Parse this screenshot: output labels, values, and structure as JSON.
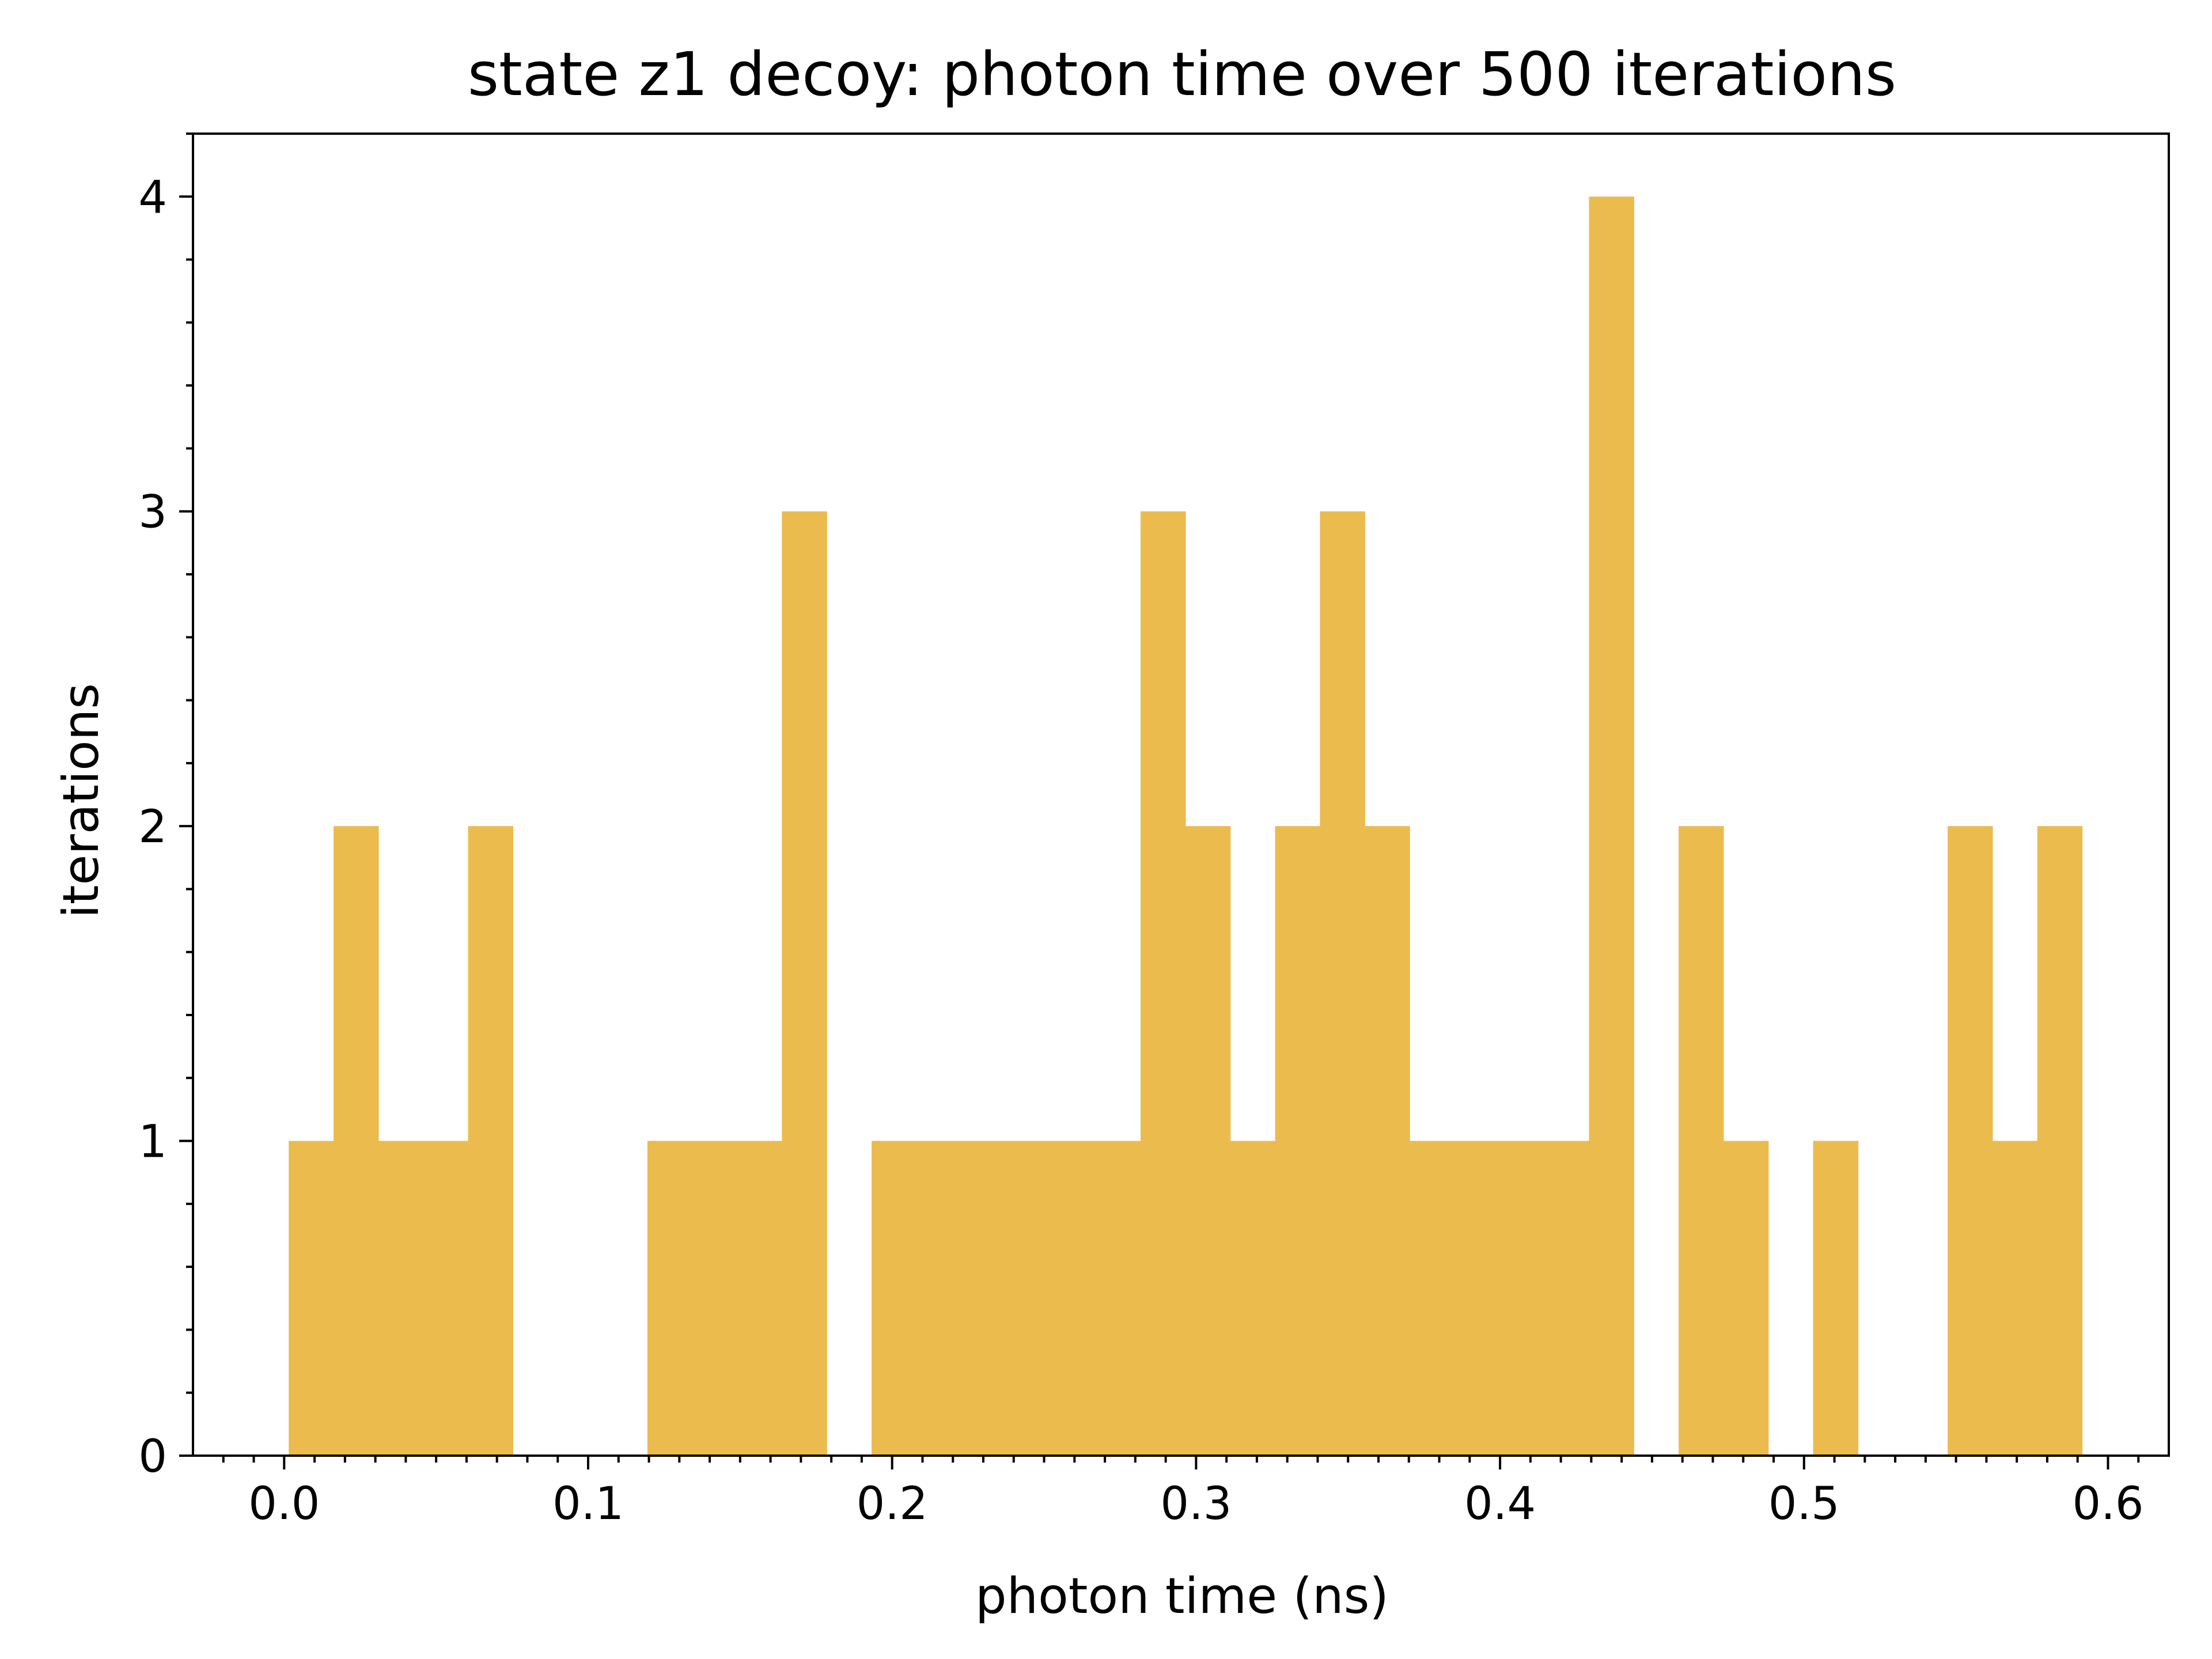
{
  "chart_data": {
    "type": "bar",
    "title": "state z1 decoy: photon time over 500 iterations",
    "xlabel": "photon time (ns)",
    "ylabel": "iterations",
    "xlim": [
      -0.03,
      0.62
    ],
    "ylim": [
      0,
      4.2
    ],
    "xticks": [
      0.0,
      0.1,
      0.2,
      0.3,
      0.4,
      0.5,
      0.6
    ],
    "xtick_labels": [
      "0.0",
      "0.1",
      "0.2",
      "0.3",
      "0.4",
      "0.5",
      "0.6"
    ],
    "yticks": [
      0,
      1,
      2,
      3,
      4
    ],
    "ytick_labels": [
      "0",
      "1",
      "2",
      "3",
      "4"
    ],
    "grid": false,
    "bar_color": "#ebbb4d",
    "bin_start": 0.0015,
    "bin_width": 0.01475,
    "counts": [
      1,
      2,
      1,
      1,
      2,
      0,
      0,
      0,
      1,
      1,
      1,
      3,
      0,
      1,
      1,
      1,
      1,
      1,
      1,
      3,
      2,
      1,
      2,
      3,
      2,
      1,
      1,
      1,
      1,
      4,
      0,
      2,
      1,
      0,
      1,
      0,
      0,
      2,
      1,
      2
    ]
  }
}
